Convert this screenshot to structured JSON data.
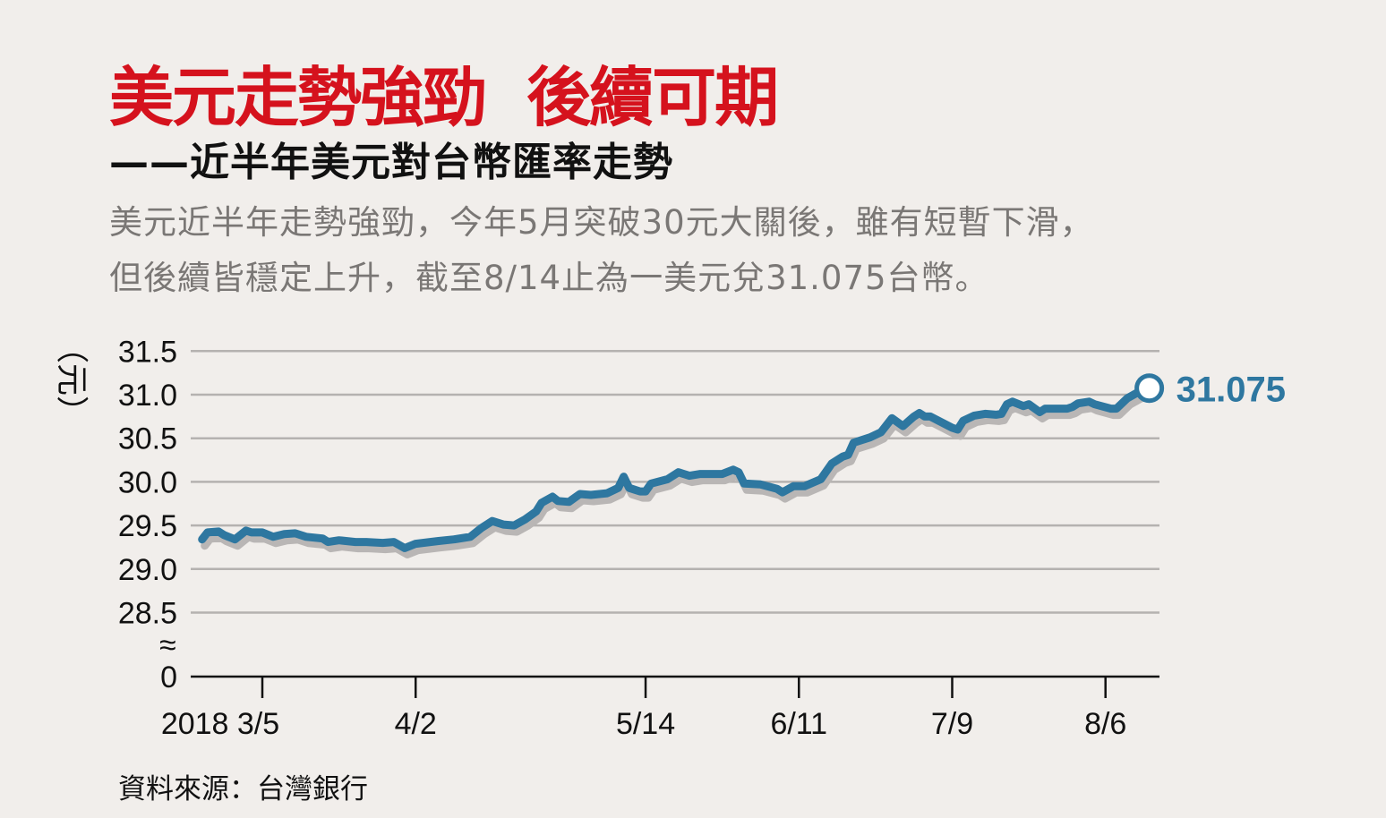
{
  "title": "美元走勢強勁  後續可期",
  "subtitle": "——近半年美元對台幣匯率走勢",
  "description": [
    "美元近半年走勢強勁，今年5月突破30元大關後，雖有短暫下滑，",
    "但後續皆穩定上升，截至8/14止為一美元兌31.075台幣。"
  ],
  "source": "資料來源：台灣銀行",
  "colors": {
    "title": "#d5121d",
    "line": "#2e77a0",
    "shadow": "#b9b6b5",
    "grid": "#b5b2b0",
    "background": "#f1eeeb"
  },
  "chart_data": {
    "type": "line",
    "ylabel": "（元）",
    "y_ticks": [
      "31.5",
      "31.0",
      "30.5",
      "30.0",
      "29.5",
      "29.0",
      "28.5",
      "0"
    ],
    "y_axis_break": "≈",
    "ylim": [
      28.5,
      31.5
    ],
    "x_ticks": [
      {
        "date": "2018-03-05",
        "label": "2018 3/5"
      },
      {
        "date": "2018-04-02",
        "label": "4/2"
      },
      {
        "date": "2018-05-14",
        "label": "5/14"
      },
      {
        "date": "2018-06-11",
        "label": "6/11"
      },
      {
        "date": "2018-07-09",
        "label": "7/9"
      },
      {
        "date": "2018-08-06",
        "label": "8/6"
      }
    ],
    "grid": true,
    "end_label": "31.075",
    "points": [
      [
        "2018-02-22",
        29.34
      ],
      [
        "2018-02-23",
        29.42
      ],
      [
        "2018-02-25",
        29.43
      ],
      [
        "2018-02-26",
        29.39
      ],
      [
        "2018-02-28",
        29.34
      ],
      [
        "2018-03-02",
        29.44
      ],
      [
        "2018-03-03",
        29.42
      ],
      [
        "2018-03-05",
        29.42
      ],
      [
        "2018-03-07",
        29.37
      ],
      [
        "2018-03-09",
        29.4
      ],
      [
        "2018-03-11",
        29.41
      ],
      [
        "2018-03-13",
        29.37
      ],
      [
        "2018-03-16",
        29.35
      ],
      [
        "2018-03-17",
        29.31
      ],
      [
        "2018-03-19",
        29.33
      ],
      [
        "2018-03-22",
        29.31
      ],
      [
        "2018-03-24",
        29.31
      ],
      [
        "2018-03-27",
        29.3
      ],
      [
        "2018-03-29",
        29.31
      ],
      [
        "2018-03-31",
        29.24
      ],
      [
        "2018-04-02",
        29.29
      ],
      [
        "2018-04-06",
        29.32
      ],
      [
        "2018-04-09",
        29.34
      ],
      [
        "2018-04-12",
        29.37
      ],
      [
        "2018-04-14",
        29.47
      ],
      [
        "2018-04-16",
        29.55
      ],
      [
        "2018-04-18",
        29.51
      ],
      [
        "2018-04-20",
        29.5
      ],
      [
        "2018-04-22",
        29.57
      ],
      [
        "2018-04-24",
        29.66
      ],
      [
        "2018-04-25",
        29.76
      ],
      [
        "2018-04-27",
        29.83
      ],
      [
        "2018-04-28",
        29.78
      ],
      [
        "2018-04-30",
        29.77
      ],
      [
        "2018-05-02",
        29.86
      ],
      [
        "2018-05-04",
        29.85
      ],
      [
        "2018-05-07",
        29.87
      ],
      [
        "2018-05-09",
        29.93
      ],
      [
        "2018-05-10",
        30.06
      ],
      [
        "2018-05-11",
        29.93
      ],
      [
        "2018-05-13",
        29.89
      ],
      [
        "2018-05-14",
        29.89
      ],
      [
        "2018-05-15",
        29.98
      ],
      [
        "2018-05-18",
        30.03
      ],
      [
        "2018-05-20",
        30.11
      ],
      [
        "2018-05-22",
        30.07
      ],
      [
        "2018-05-24",
        30.09
      ],
      [
        "2018-05-26",
        30.09
      ],
      [
        "2018-05-28",
        30.09
      ],
      [
        "2018-05-30",
        30.14
      ],
      [
        "2018-05-31",
        30.11
      ],
      [
        "2018-06-01",
        29.98
      ],
      [
        "2018-06-04",
        29.97
      ],
      [
        "2018-06-07",
        29.92
      ],
      [
        "2018-06-08",
        29.88
      ],
      [
        "2018-06-10",
        29.95
      ],
      [
        "2018-06-12",
        29.95
      ],
      [
        "2018-06-15",
        30.03
      ],
      [
        "2018-06-17",
        30.21
      ],
      [
        "2018-06-19",
        30.29
      ],
      [
        "2018-06-20",
        30.31
      ],
      [
        "2018-06-21",
        30.45
      ],
      [
        "2018-06-24",
        30.51
      ],
      [
        "2018-06-26",
        30.57
      ],
      [
        "2018-06-28",
        30.73
      ],
      [
        "2018-06-30",
        30.64
      ],
      [
        "2018-07-02",
        30.75
      ],
      [
        "2018-07-03",
        30.79
      ],
      [
        "2018-07-04",
        30.75
      ],
      [
        "2018-07-05",
        30.75
      ],
      [
        "2018-07-09",
        30.62
      ],
      [
        "2018-07-10",
        30.6
      ],
      [
        "2018-07-11",
        30.7
      ],
      [
        "2018-07-13",
        30.76
      ],
      [
        "2018-07-15",
        30.78
      ],
      [
        "2018-07-17",
        30.77
      ],
      [
        "2018-07-18",
        30.78
      ],
      [
        "2018-07-19",
        30.89
      ],
      [
        "2018-07-20",
        30.92
      ],
      [
        "2018-07-22",
        30.87
      ],
      [
        "2018-07-23",
        30.89
      ],
      [
        "2018-07-25",
        30.8
      ],
      [
        "2018-07-26",
        30.84
      ],
      [
        "2018-07-30",
        30.84
      ],
      [
        "2018-07-31",
        30.86
      ],
      [
        "2018-08-01",
        30.9
      ],
      [
        "2018-08-03",
        30.92
      ],
      [
        "2018-08-04",
        30.89
      ],
      [
        "2018-08-07",
        30.84
      ],
      [
        "2018-08-08",
        30.84
      ],
      [
        "2018-08-10",
        30.96
      ],
      [
        "2018-08-12",
        31.03
      ],
      [
        "2018-08-14",
        31.075
      ]
    ]
  }
}
